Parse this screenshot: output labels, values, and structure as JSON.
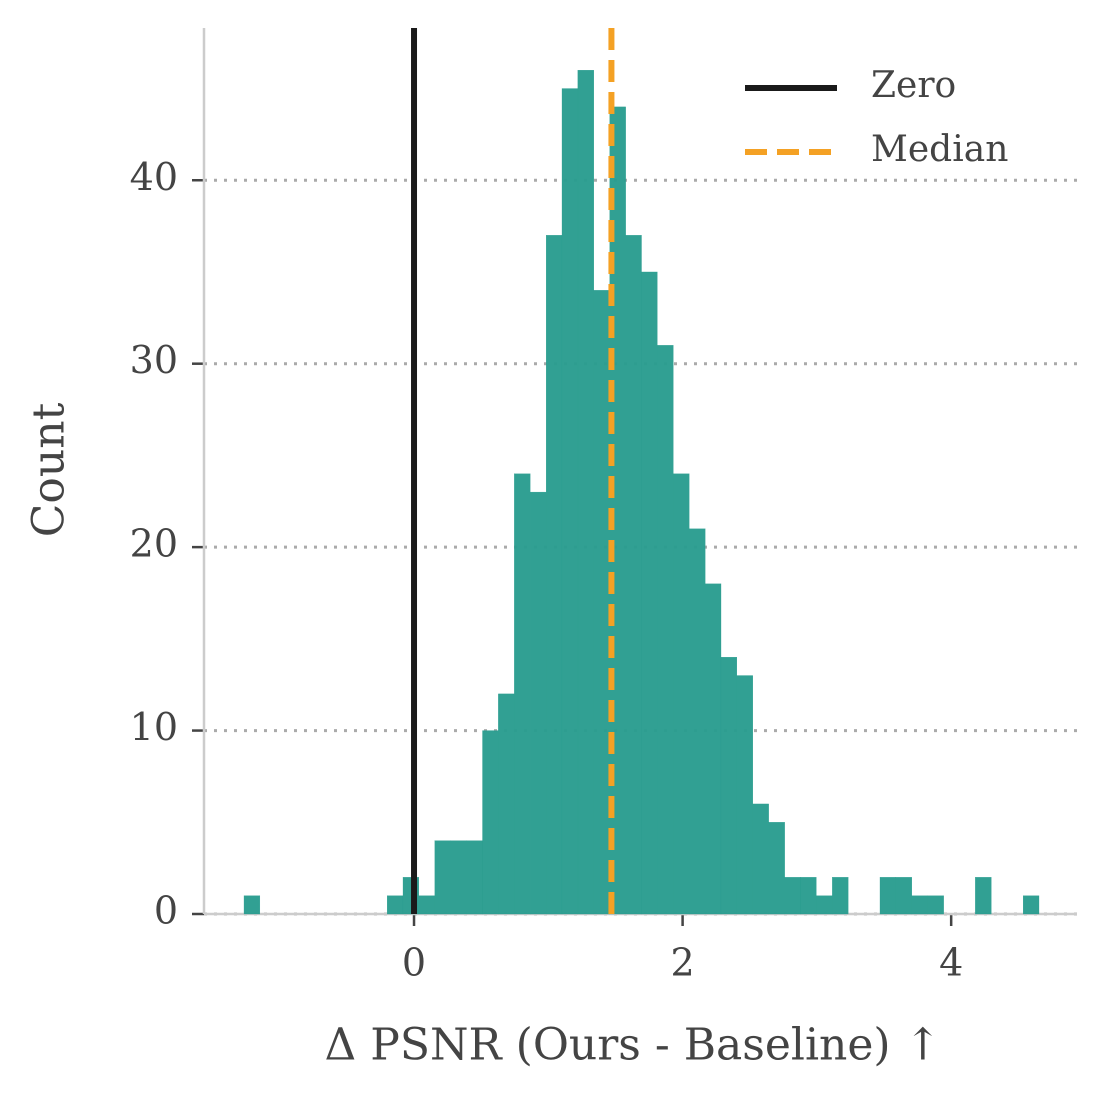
{
  "chart_data": {
    "type": "histogram",
    "xlabel": "Δ PSNR (Ours - Baseline)  ↑",
    "ylabel": "Count",
    "bins": [
      -1.266,
      -1.148,
      -1.029,
      -0.911,
      -0.792,
      -0.674,
      -0.556,
      -0.437,
      -0.319,
      -0.2,
      -0.082,
      0.036,
      0.155,
      0.273,
      0.392,
      0.51,
      0.628,
      0.747,
      0.865,
      0.984,
      1.102,
      1.22,
      1.339,
      1.457,
      1.576,
      1.694,
      1.812,
      1.931,
      2.049,
      2.168,
      2.286,
      2.404,
      2.523,
      2.641,
      2.76,
      2.878,
      2.996,
      3.115,
      3.233,
      3.352,
      3.47,
      3.588,
      3.707,
      3.825,
      3.944,
      4.062,
      4.18,
      4.299,
      4.417,
      4.536,
      4.654
    ],
    "values": [
      1,
      0,
      0,
      0,
      0,
      0,
      0,
      0,
      0,
      1,
      2,
      1,
      4,
      4,
      4,
      10,
      12,
      24,
      23,
      37,
      45,
      46,
      34,
      44,
      37,
      35,
      31,
      24,
      21,
      18,
      14,
      13,
      6,
      5,
      2,
      2,
      1,
      2,
      0,
      0,
      2,
      2,
      1,
      1,
      0,
      0,
      2,
      0,
      0,
      1
    ],
    "color": "#2a9d8f",
    "vlines": [
      {
        "name": "Zero",
        "value": 0,
        "color": "#1a1a1a",
        "style": "solid"
      },
      {
        "name": "Median",
        "value": 1.47,
        "color": "#f4a124",
        "style": "dashed"
      }
    ],
    "xlim": [
      -1.564,
      4.937
    ],
    "xticks": [
      0,
      2,
      4
    ],
    "ylim": [
      0,
      48.3
    ],
    "yticks": [
      0,
      10,
      20,
      30,
      40
    ],
    "grid": true,
    "legend": "upper right"
  }
}
